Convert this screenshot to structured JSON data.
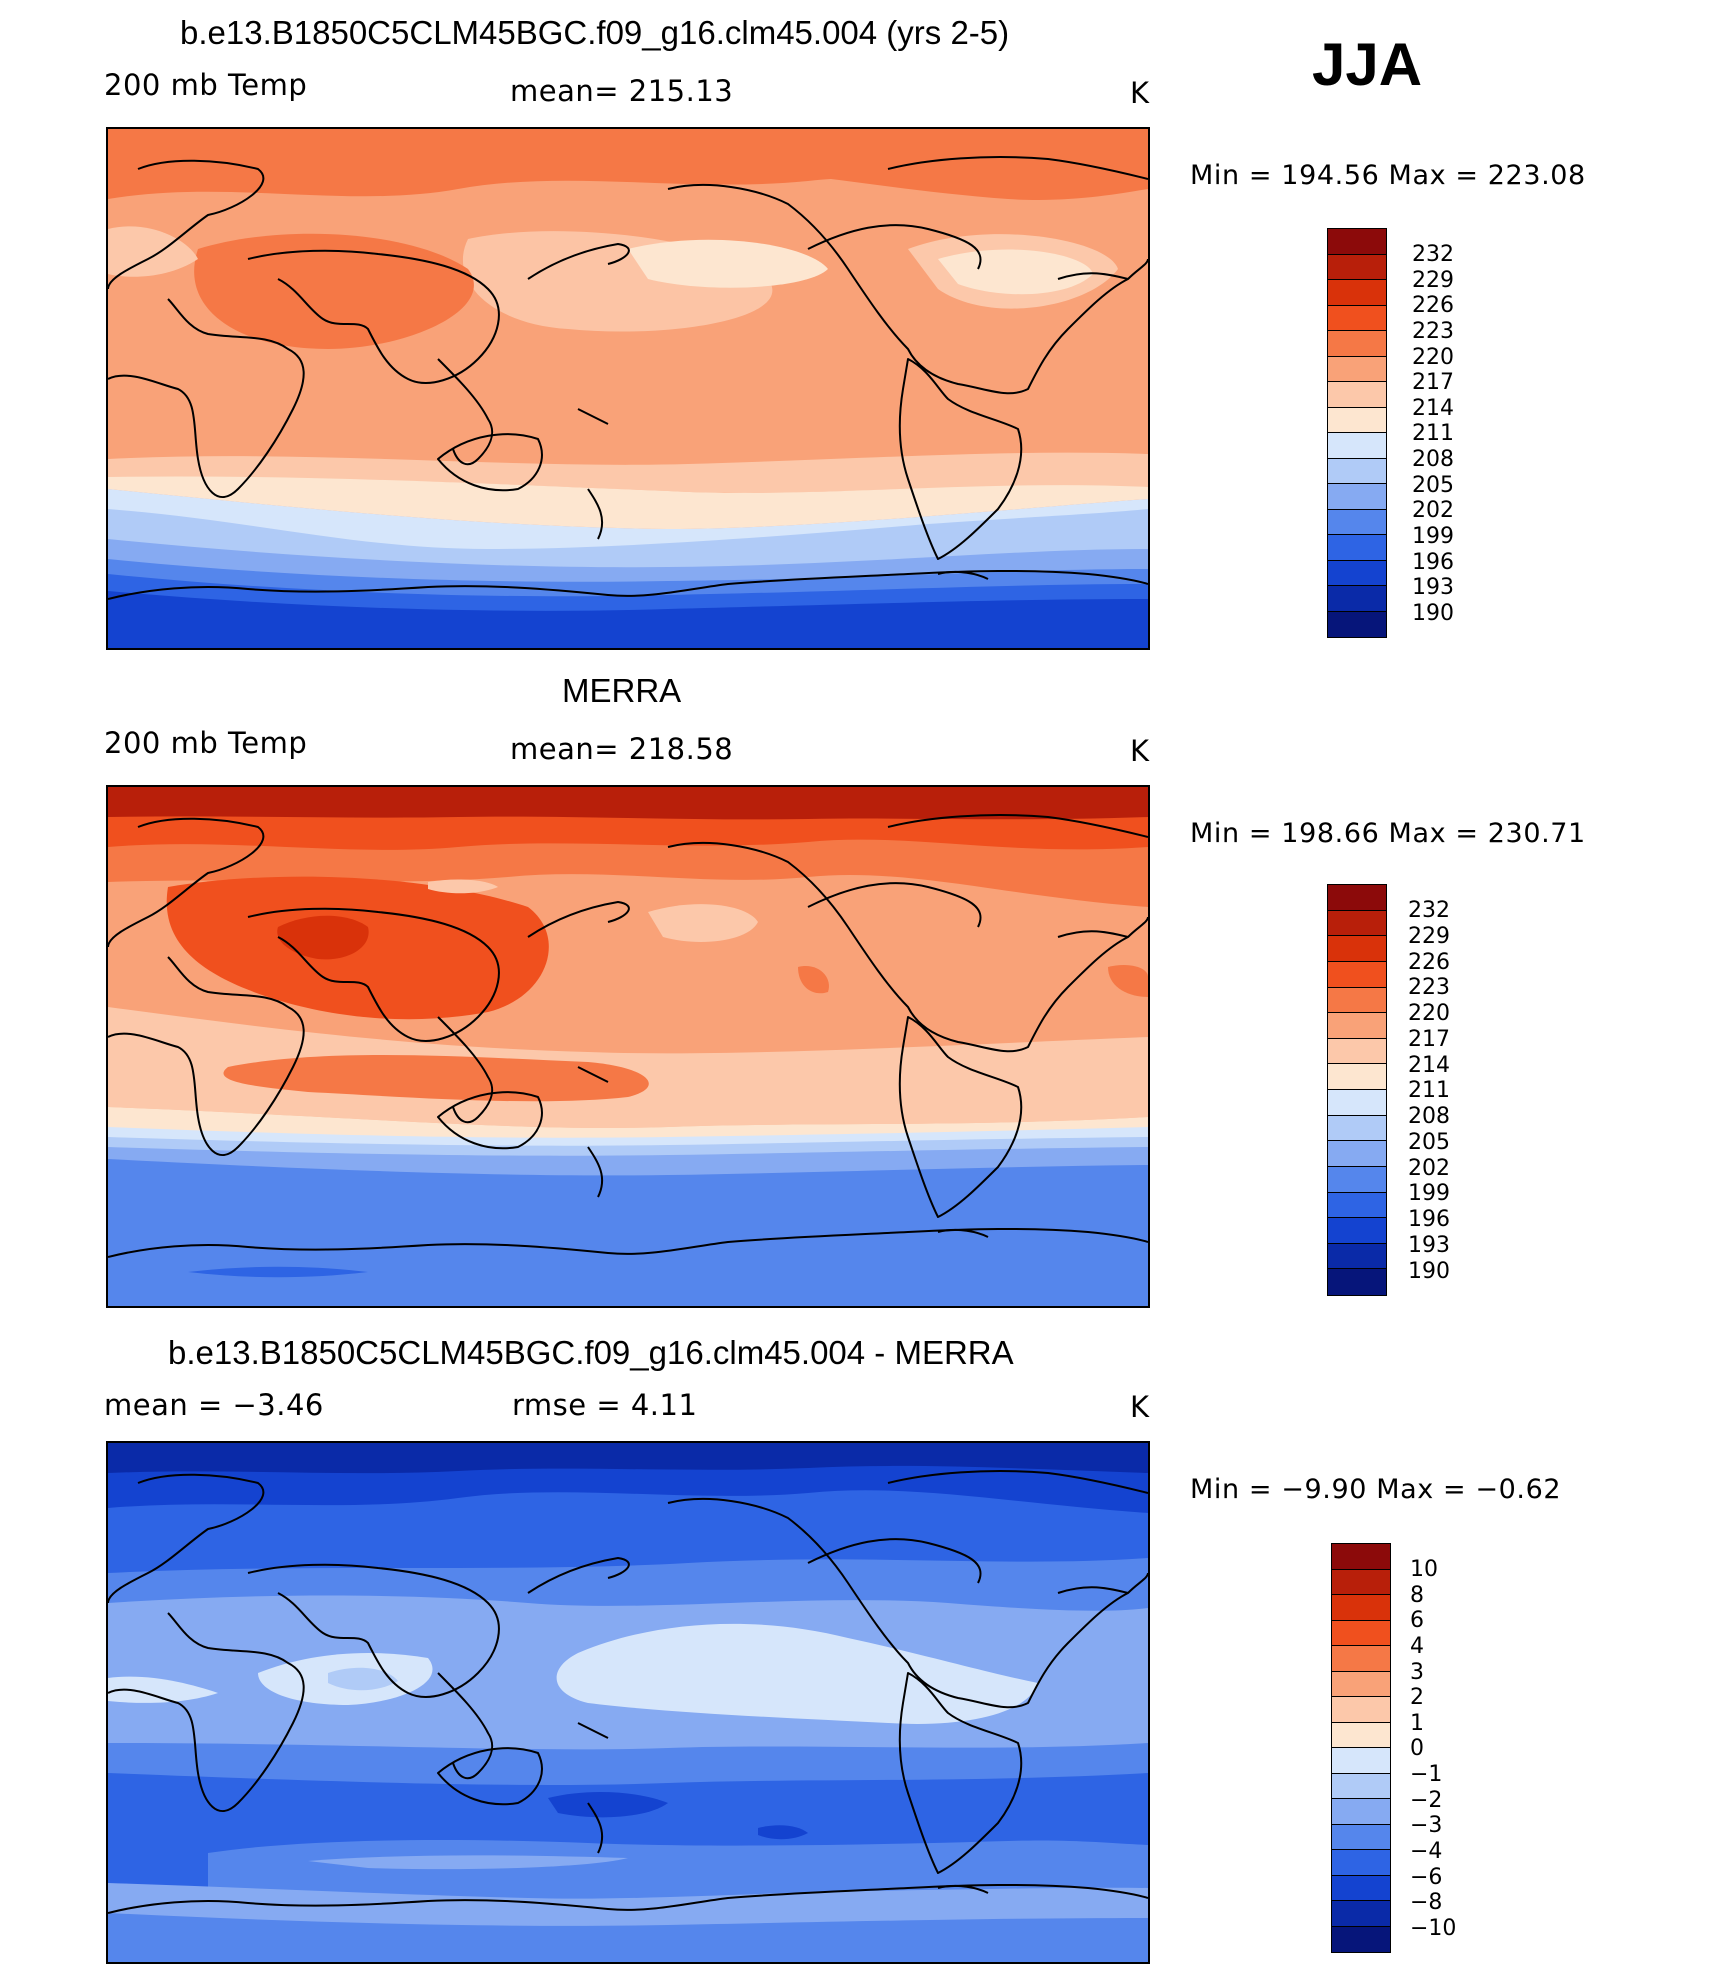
{
  "season": "JJA",
  "panels": [
    {
      "title": "b.e13.B1850C5CLM45BGC.f09_g16.clm45.004 (yrs 2-5)",
      "variable": "200 mb Temp",
      "stat": "mean= 215.13",
      "stat2": "",
      "units": "K",
      "minmax": "Min = 194.56 Max = 223.08",
      "colorbar_type": "absolute"
    },
    {
      "title": "MERRA",
      "variable": "200 mb Temp",
      "stat": "mean= 218.58",
      "stat2": "",
      "units": "K",
      "minmax": "Min = 198.66 Max = 230.71",
      "colorbar_type": "absolute"
    },
    {
      "title": "b.e13.B1850C5CLM45BGC.f09_g16.clm45.004 - MERRA",
      "variable": "",
      "stat": "mean = −3.46",
      "stat2": "rmse = 4.11",
      "units": "K",
      "minmax": "Min = −9.90 Max = −0.62",
      "colorbar_type": "difference"
    }
  ],
  "colorbars": {
    "absolute": {
      "labels": [
        "232",
        "229",
        "226",
        "223",
        "220",
        "217",
        "214",
        "211",
        "208",
        "205",
        "202",
        "199",
        "196",
        "193",
        "190"
      ],
      "colors": [
        "#8c0a0a",
        "#b81f0a",
        "#d9320a",
        "#f0501e",
        "#f57846",
        "#f9a278",
        "#fcc8aa",
        "#fde6d0",
        "#d6e6fb",
        "#b0cbf7",
        "#86aaf2",
        "#5586ec",
        "#2e64e4",
        "#1443d0",
        "#0a2aa8",
        "#06157a"
      ]
    },
    "difference": {
      "labels": [
        "10",
        "8",
        "6",
        "4",
        "3",
        "2",
        "1",
        "0",
        "−1",
        "−2",
        "−3",
        "−4",
        "−6",
        "−8",
        "−10"
      ],
      "colors": [
        "#8c0a0a",
        "#b81f0a",
        "#d9320a",
        "#f0501e",
        "#f57846",
        "#f9a278",
        "#fcc8aa",
        "#fde6d0",
        "#d6e6fb",
        "#b0cbf7",
        "#86aaf2",
        "#5586ec",
        "#2e64e4",
        "#1443d0",
        "#0a2aa8",
        "#06157a"
      ]
    }
  }
}
